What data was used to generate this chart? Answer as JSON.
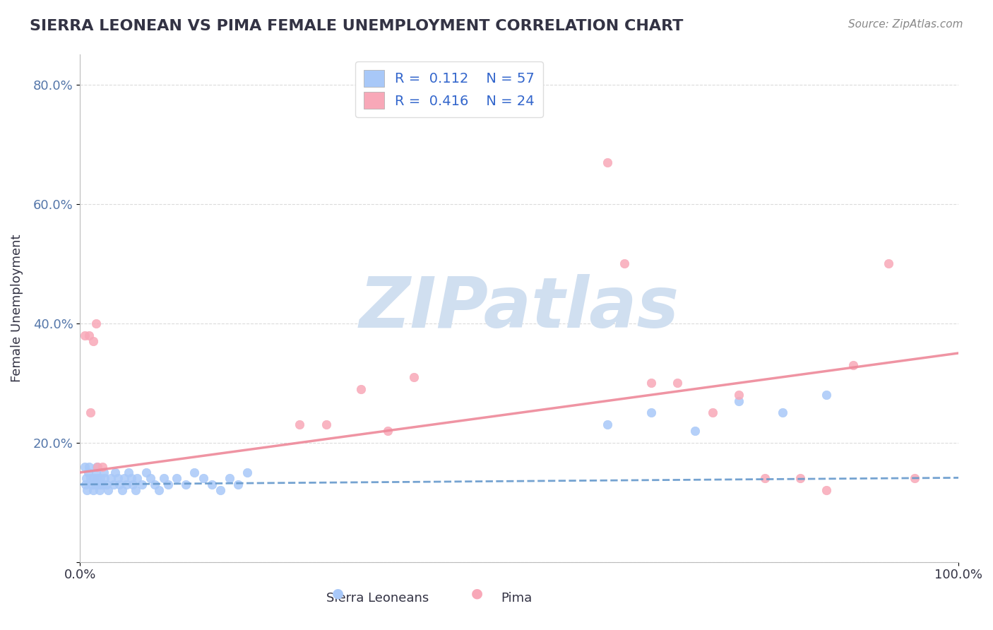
{
  "title": "SIERRA LEONEAN VS PIMA FEMALE UNEMPLOYMENT CORRELATION CHART",
  "source": "Source: ZipAtlas.com",
  "xlabel": "",
  "ylabel": "Female Unemployment",
  "xlim": [
    0.0,
    1.0
  ],
  "ylim": [
    0.0,
    0.85
  ],
  "yticks": [
    0.0,
    0.2,
    0.4,
    0.6,
    0.8
  ],
  "ytick_labels": [
    "",
    "20.0%",
    "40.0%",
    "60.0%",
    "80.0%"
  ],
  "xticks": [
    0.0,
    1.0
  ],
  "xtick_labels": [
    "0.0%",
    "100.0%"
  ],
  "legend_labels": [
    "Sierra Leoneans",
    "Pima"
  ],
  "sierra_R": 0.112,
  "sierra_N": 57,
  "pima_R": 0.416,
  "pima_N": 24,
  "sierra_color": "#a8c8f8",
  "pima_color": "#f8a8b8",
  "sierra_line_color": "#6699cc",
  "pima_line_color": "#ee8899",
  "watermark": "ZIPatlas",
  "watermark_color": "#d0dff0",
  "background_color": "#ffffff",
  "grid_color": "#cccccc",
  "title_color": "#333344",
  "sierra_x": [
    0.005,
    0.006,
    0.007,
    0.008,
    0.009,
    0.01,
    0.012,
    0.013,
    0.015,
    0.016,
    0.017,
    0.018,
    0.019,
    0.02,
    0.021,
    0.022,
    0.023,
    0.025,
    0.027,
    0.028,
    0.03,
    0.032,
    0.035,
    0.038,
    0.04,
    0.043,
    0.045,
    0.048,
    0.05,
    0.053,
    0.055,
    0.058,
    0.06,
    0.063,
    0.065,
    0.07,
    0.075,
    0.08,
    0.085,
    0.09,
    0.095,
    0.1,
    0.11,
    0.12,
    0.13,
    0.14,
    0.15,
    0.16,
    0.17,
    0.18,
    0.19,
    0.6,
    0.65,
    0.7,
    0.75,
    0.8,
    0.85
  ],
  "sierra_y": [
    0.16,
    0.13,
    0.14,
    0.12,
    0.15,
    0.16,
    0.14,
    0.13,
    0.12,
    0.14,
    0.13,
    0.15,
    0.16,
    0.14,
    0.13,
    0.12,
    0.14,
    0.13,
    0.15,
    0.14,
    0.13,
    0.12,
    0.14,
    0.13,
    0.15,
    0.14,
    0.13,
    0.12,
    0.14,
    0.13,
    0.15,
    0.14,
    0.13,
    0.12,
    0.14,
    0.13,
    0.15,
    0.14,
    0.13,
    0.12,
    0.14,
    0.13,
    0.14,
    0.13,
    0.15,
    0.14,
    0.13,
    0.12,
    0.14,
    0.13,
    0.15,
    0.23,
    0.25,
    0.22,
    0.27,
    0.25,
    0.28
  ],
  "pima_x": [
    0.005,
    0.01,
    0.012,
    0.015,
    0.018,
    0.02,
    0.025,
    0.25,
    0.28,
    0.32,
    0.35,
    0.38,
    0.6,
    0.62,
    0.65,
    0.68,
    0.72,
    0.75,
    0.78,
    0.82,
    0.85,
    0.88,
    0.92,
    0.95
  ],
  "pima_y": [
    0.38,
    0.38,
    0.25,
    0.37,
    0.4,
    0.16,
    0.16,
    0.23,
    0.23,
    0.29,
    0.22,
    0.31,
    0.67,
    0.5,
    0.3,
    0.3,
    0.25,
    0.28,
    0.14,
    0.14,
    0.12,
    0.33,
    0.5,
    0.14
  ]
}
